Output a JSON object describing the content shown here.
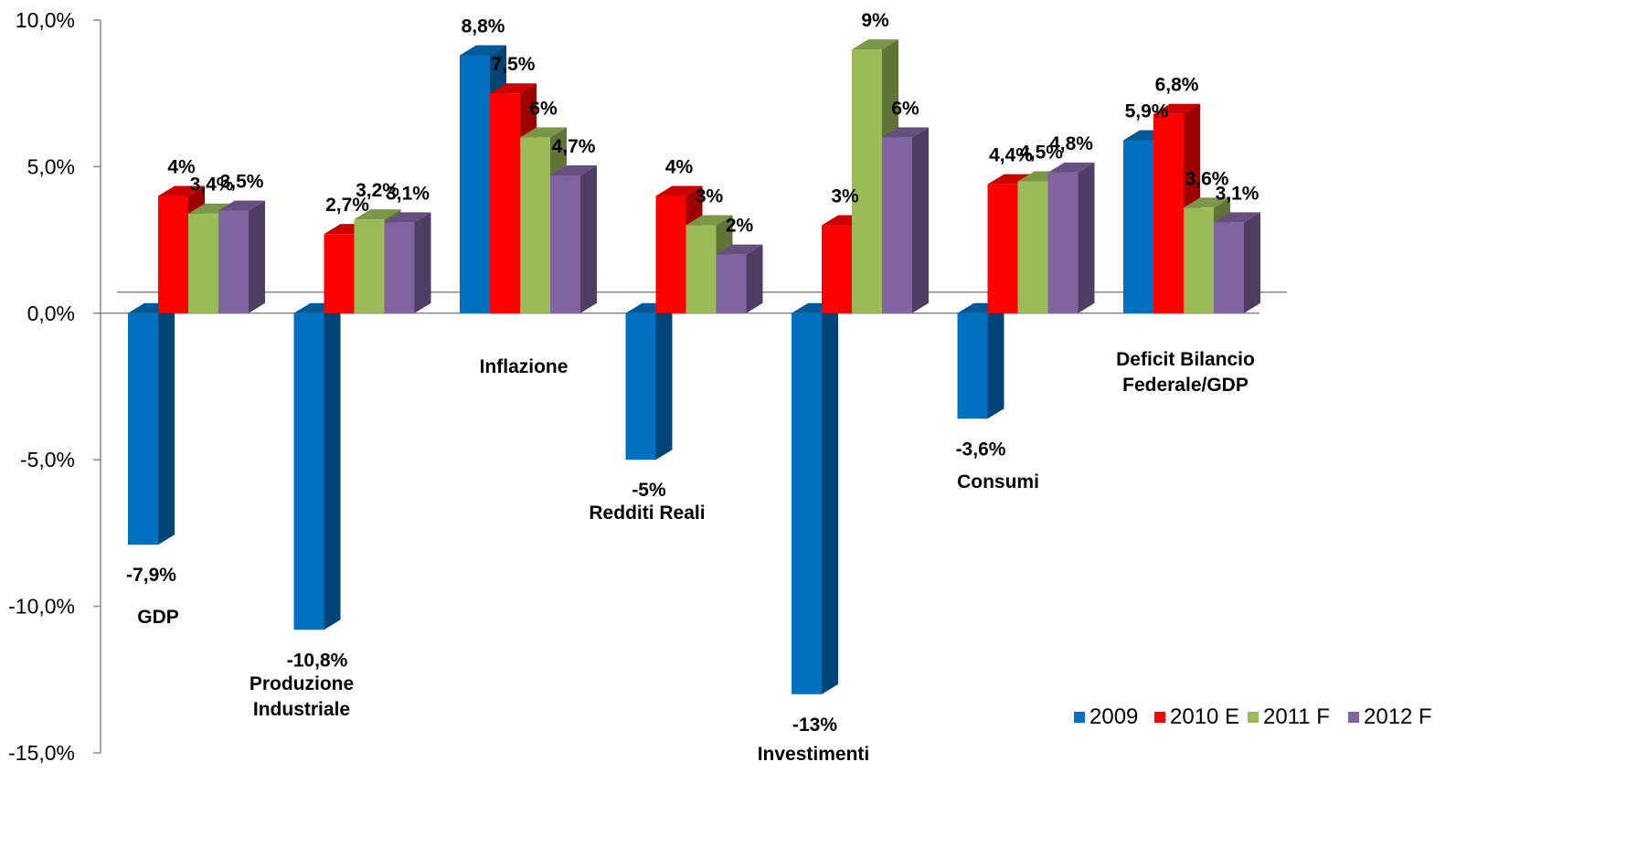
{
  "chart_data": {
    "type": "bar",
    "ylim": [
      -15,
      10
    ],
    "ytick_labels": [
      "10,0%",
      "5,0%",
      "0,0%",
      "-5,0%",
      "-10,0%",
      "-15,0%"
    ],
    "ytick_values": [
      10,
      5,
      0,
      -5,
      -10,
      -15
    ],
    "categories": [
      "GDP",
      "Produzione Industriale",
      "Inflazione",
      "Redditi  Reali",
      "Investimenti",
      "Consumi",
      "Deficit Bilancio Federale/GDP"
    ],
    "series": [
      {
        "name": "2009",
        "color": "#0070C0",
        "values": [
          -7.9,
          -10.8,
          8.8,
          -5,
          -13,
          -3.6,
          5.9
        ],
        "labels": [
          "-7,9%",
          "-10,8%",
          "8,8%",
          "-5%",
          "-13%",
          "-3,6%",
          "5,9%"
        ]
      },
      {
        "name": "2010 E",
        "color": "#FF0000",
        "values": [
          4,
          2.7,
          7.5,
          4,
          3,
          4.4,
          6.8
        ],
        "labels": [
          "4%",
          "2,7%",
          "7,5%",
          "4%",
          "3%",
          "4,4%",
          "6,8%"
        ]
      },
      {
        "name": "2011 F",
        "color": "#9BBB59",
        "values": [
          3.4,
          3.2,
          6,
          3,
          9,
          4.5,
          3.6
        ],
        "labels": [
          "3,4%",
          "3,2%",
          "6%",
          "3%",
          "9%",
          "4,5%",
          "3,6%"
        ]
      },
      {
        "name": "2012 F",
        "color": "#8064A2",
        "values": [
          3.5,
          3.1,
          4.7,
          2,
          6,
          4.8,
          3.1
        ],
        "labels": [
          "3,5%",
          "3,1%",
          "4,7%",
          "2%",
          "6%",
          "4,8%",
          "3,1%"
        ]
      }
    ],
    "grid": false,
    "legend_position": "bottom-right",
    "style": "3d-clustered-columns"
  }
}
